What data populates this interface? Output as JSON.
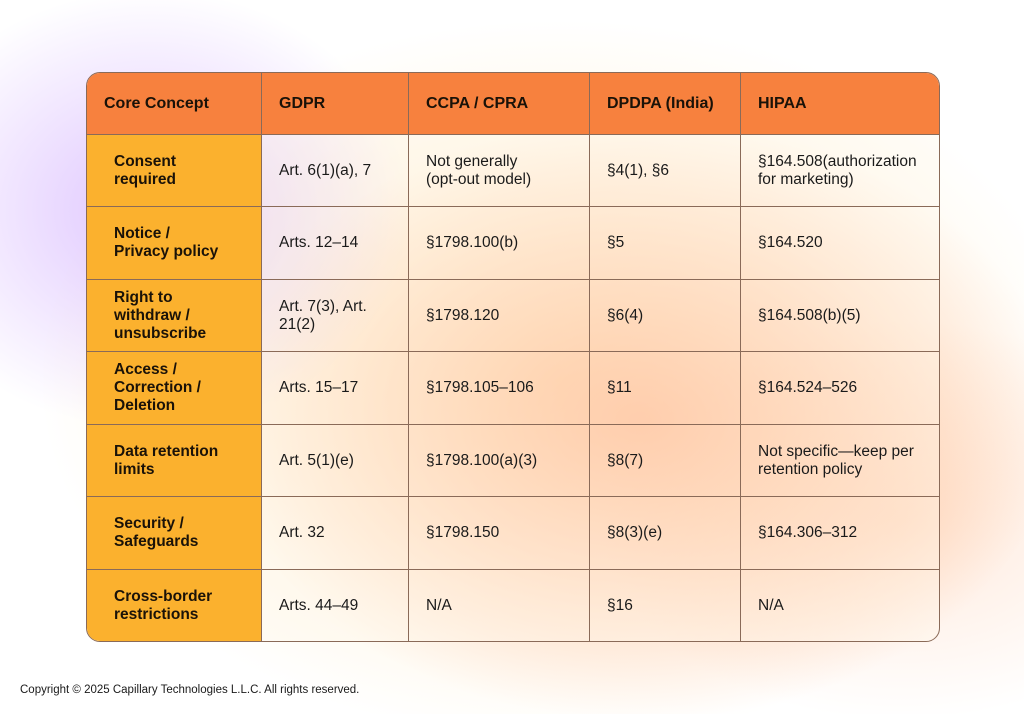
{
  "table": {
    "headers": [
      "Core Concept",
      "GDPR",
      "CCPA / CPRA",
      "DPDPA (India)",
      "HIPAA"
    ],
    "rows": [
      [
        "Consent required",
        "Art. 6(1)(a), 7",
        "Not generally (opt-out model)",
        "§4(1), §6",
        "§164.508(authorization for marketing)"
      ],
      [
        "Notice / Privacy policy",
        "Arts. 12–14",
        "§1798.100(b)",
        "§5",
        "§164.520"
      ],
      [
        "Right to withdraw / unsubscribe",
        "Art. 7(3), Art. 21(2)",
        "§1798.120",
        "§6(4)",
        "§164.508(b)(5)"
      ],
      [
        "Access / Correction / Deletion",
        "Arts. 15–17",
        "§1798.105–106",
        "§11",
        "§164.524–526"
      ],
      [
        "Data retention limits",
        "Art. 5(1)(e)",
        "§1798.100(a)(3)",
        "§8(7)",
        "Not specific—keep per retention policy"
      ],
      [
        "Security / Safeguards",
        "Art. 32",
        "§1798.150",
        "§8(3)(e)",
        "§164.306–312"
      ],
      [
        "Cross-border restrictions",
        "Arts. 44–49",
        "N/A",
        "§16",
        "N/A"
      ]
    ]
  },
  "footer": {
    "copyright": "Copyright © 2025 Capillary Technologies L.L.C. All rights reserved."
  },
  "colors": {
    "header_bg": "#f7813e",
    "concept_bg": "#fbb12e",
    "border": "#8a6a58"
  }
}
